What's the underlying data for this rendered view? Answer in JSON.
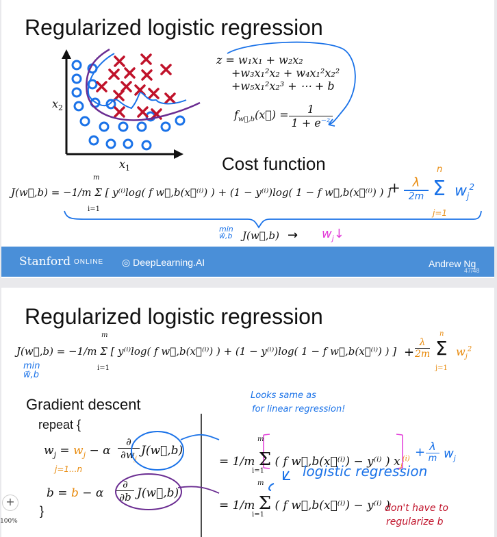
{
  "slide1": {
    "title": "Regularized logistic regression",
    "plot": {
      "x_label": "x",
      "x_sub": "1",
      "y_label": "x",
      "y_sub": "2"
    },
    "z_eq": {
      "line1": "z = w₁x₁ + w₂x₂",
      "line2": "+w₃x₁²x₂ + w₄x₁²x₂²",
      "line3": "+w₅x₁²x₂³ + ⋯ + b"
    },
    "sigmoid": {
      "lhs": "f",
      "sub": "w⃗,b",
      "arg": "(x⃗) =",
      "num": "1",
      "den": "1 + e",
      "exp": "−z"
    },
    "cost_title": "Cost function",
    "cost_eq": "J(w⃗,b) = −1/m Σ [ y⁽ⁱ⁾log( f w⃗,b(x⃗⁽ⁱ⁾) ) + (1 − y⁽ⁱ⁾)log( 1 − f w⃗,b(x⃗⁽ⁱ⁾) ) ]",
    "cost_reg": {
      "frac_num": "λ",
      "frac_den": "2m",
      "sum_top": "n",
      "sum_bot": "j=1",
      "term": "w",
      "term_sub": "j",
      "term_sup": "2"
    },
    "min_line": {
      "min": "min",
      "sub": "w⃗,b",
      "expr": "J(w⃗,b)",
      "arrow": "→",
      "w": "w",
      "w_sub": "j",
      "down": "↓"
    },
    "sum_top": "m",
    "sum_bot": "i=1",
    "page": "47/48"
  },
  "banner": {
    "stanford": "Stanford",
    "online": "ONLINE",
    "dlai": "DeepLearning.AI",
    "author": "Andrew Ng"
  },
  "slide2": {
    "title": "Regularized logistic regression",
    "cost_eq": "J(w⃗,b) = −1/m Σ [ y⁽ⁱ⁾log( f w⃗,b(x⃗⁽ⁱ⁾) ) + (1 − y⁽ⁱ⁾)log( 1 − f w⃗,b(x⃗⁽ⁱ⁾) ) ]",
    "cost_reg": {
      "num": "λ",
      "den": "2m",
      "top": "n",
      "bot": "j=1",
      "term": "w",
      "sub": "j",
      "sup": "2"
    },
    "min_note": {
      "min": "min",
      "sub": "w⃗,b"
    },
    "gd_title": "Gradient descent",
    "repeat": "repeat {",
    "close": "}",
    "wj_update": {
      "lhs": "w",
      "lhs_sub": "j",
      "eq": "=",
      "rhs": "w",
      "rhs_sub": "j",
      "minus": "− α",
      "partial": "∂",
      "den": "∂w",
      "den_sub": "j",
      "J": "J(w⃗,b)"
    },
    "b_update": {
      "lhs": "b = ",
      "b": "b",
      "minus": "− α",
      "partial": "∂",
      "den": "∂b",
      "J": "J(w⃗,b)"
    },
    "j_range": "j=1...n",
    "grad_w": {
      "eq": "= 1/m",
      "body": "( f w⃗,b(x⃗⁽ⁱ⁾) − y⁽ⁱ⁾ ) x",
      "xsub": "j",
      "xsup": "(i)",
      "reg_num": "λ",
      "reg_den": "m",
      "reg_w": "w",
      "reg_sub": "j"
    },
    "grad_b": {
      "eq": "= 1/m",
      "body": "( f w⃗,b(x⃗⁽ⁱ⁾) − y⁽ⁱ⁾ )"
    },
    "sum_top": "m",
    "sum_bot": "i=1",
    "notes": {
      "looks_same": "Looks same as",
      "for_linear": "for linear regression!",
      "logistic": "logistic regression",
      "dont1": "don't have to",
      "dont2": "regularize b"
    }
  },
  "zoom": {
    "plus": "+",
    "level": "100%"
  },
  "colors": {
    "blue": "#1a72e8",
    "red": "#c0122a",
    "orange": "#e88a0c",
    "magenta": "#e23bd8",
    "purple": "#6a2c91",
    "banner": "#4a8fd8"
  }
}
